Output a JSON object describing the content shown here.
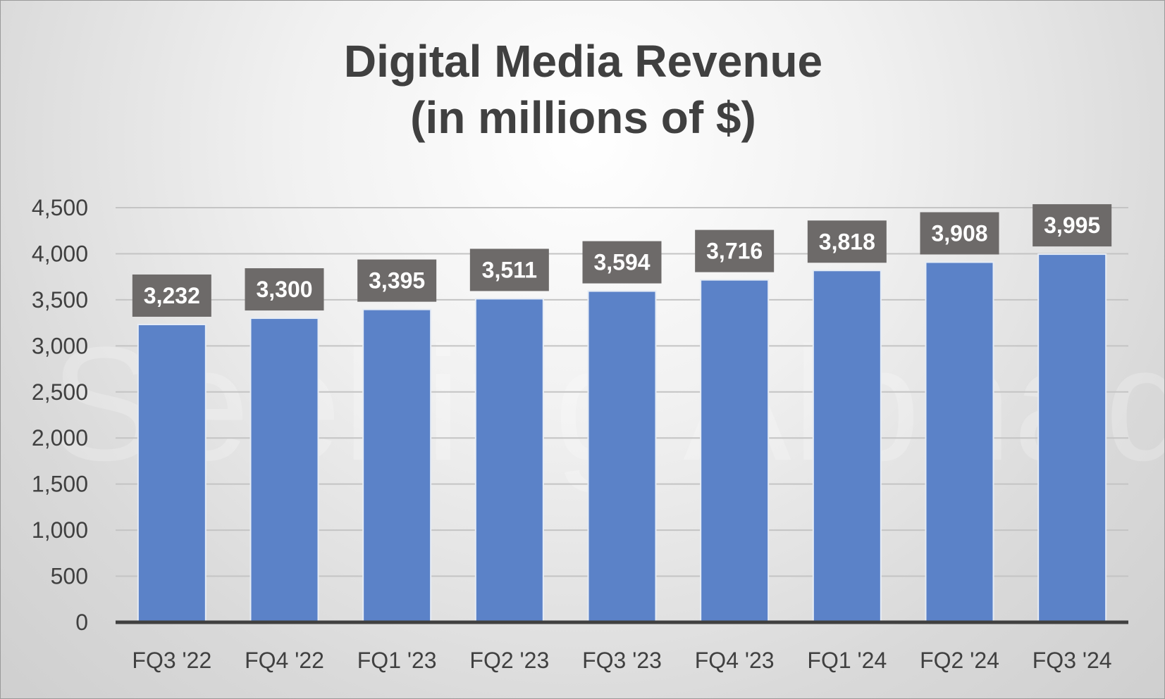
{
  "chart_data": {
    "type": "bar",
    "title_lines": [
      "Digital Media Revenue",
      "(in millions of $)"
    ],
    "categories": [
      "FQ3 '22",
      "FQ4 '22",
      "FQ1 '23",
      "FQ2 '23",
      "FQ3 '23",
      "FQ4 '23",
      "FQ1 '24",
      "FQ2 '24",
      "FQ3 '24"
    ],
    "values": [
      3232,
      3300,
      3395,
      3511,
      3594,
      3716,
      3818,
      3908,
      3995
    ],
    "data_labels": [
      "3,232",
      "3,300",
      "3,395",
      "3,511",
      "3,594",
      "3,716",
      "3,818",
      "3,908",
      "3,995"
    ],
    "y_ticks": [
      0,
      500,
      1000,
      1500,
      2000,
      2500,
      3000,
      3500,
      4000,
      4500
    ],
    "y_tick_labels": [
      "0",
      "500",
      "1,000",
      "1,500",
      "2,000",
      "2,500",
      "3,000",
      "3,500",
      "4,000",
      "4,500"
    ],
    "ylim": [
      0,
      4500
    ],
    "grid": true,
    "legend": "none",
    "colors": {
      "bar": "#5b82c8",
      "bar_edge": "#e6ecf5",
      "label_box": "#6d6a69",
      "gridline": "#c4c4c4",
      "axis": "#404040"
    }
  },
  "watermark": "Seeking Alphaα"
}
